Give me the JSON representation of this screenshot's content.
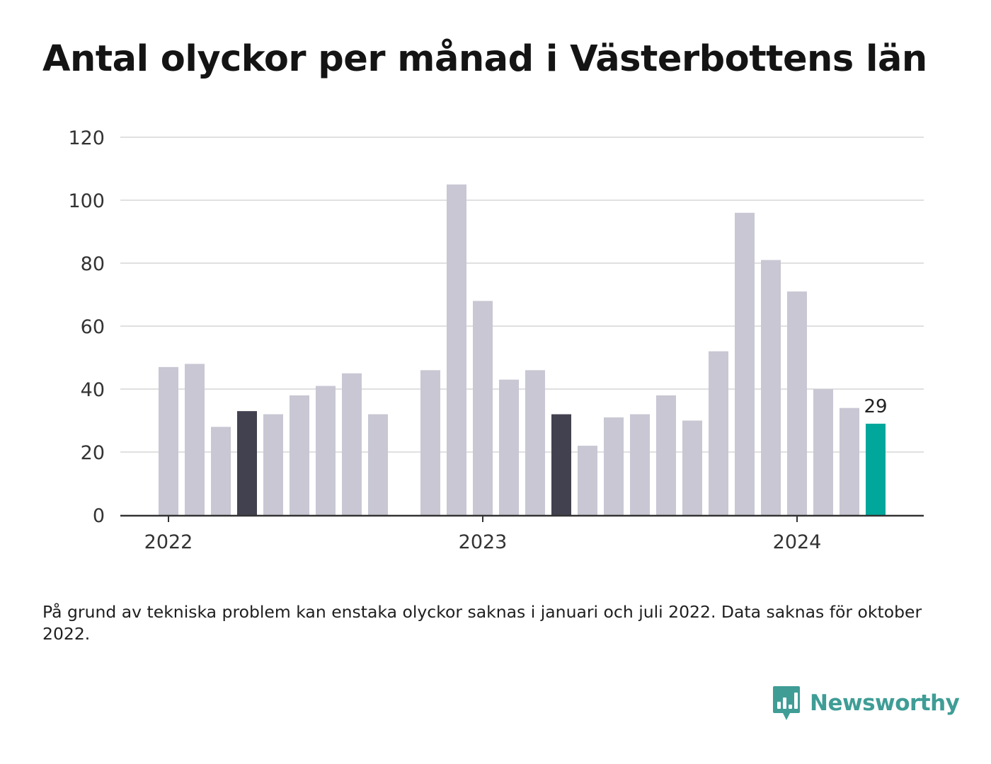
{
  "title": "Antal olyckor per månad i Västerbottens län",
  "note": "På grund av tekniska problem kan enstaka olyckor saknas i januari och juli 2022. Data saknas för oktober 2022.",
  "brand": {
    "name": "Newsworthy",
    "icon": "newsworthy-logo-icon",
    "color": "#3f9d96"
  },
  "chart_data": {
    "type": "bar",
    "title": "Antal olyckor per månad i Västerbottens län",
    "xlabel": "",
    "ylabel": "",
    "ylim": [
      0,
      120
    ],
    "yticks": [
      0,
      20,
      40,
      60,
      80,
      100,
      120
    ],
    "grid": true,
    "legend": "none",
    "x_tick_labels": [
      {
        "label": "2022",
        "month": "2022-01"
      },
      {
        "label": "2023",
        "month": "2023-01"
      },
      {
        "label": "2024",
        "month": "2024-01"
      }
    ],
    "colors": {
      "default": "#c8c7d3",
      "highlight_dark": "#42414f",
      "current": "#02a79b",
      "grid": "#e0e0e0",
      "axis": "#333333"
    },
    "categories": [
      "2022-01",
      "2022-02",
      "2022-03",
      "2022-04",
      "2022-05",
      "2022-06",
      "2022-07",
      "2022-08",
      "2022-09",
      "2022-10",
      "2022-11",
      "2022-12",
      "2023-01",
      "2023-02",
      "2023-03",
      "2023-04",
      "2023-05",
      "2023-06",
      "2023-07",
      "2023-08",
      "2023-09",
      "2023-10",
      "2023-11",
      "2023-12",
      "2024-01",
      "2024-02",
      "2024-03",
      "2024-04"
    ],
    "values": [
      47,
      48,
      28,
      33,
      32,
      38,
      41,
      45,
      32,
      null,
      46,
      105,
      68,
      43,
      46,
      32,
      22,
      31,
      32,
      38,
      30,
      52,
      96,
      81,
      71,
      40,
      34,
      29
    ],
    "highlight": {
      "dark": [
        "2022-04",
        "2023-04"
      ],
      "current": "2024-04"
    },
    "value_labels": [
      {
        "month": "2024-04",
        "text": "29"
      }
    ]
  }
}
